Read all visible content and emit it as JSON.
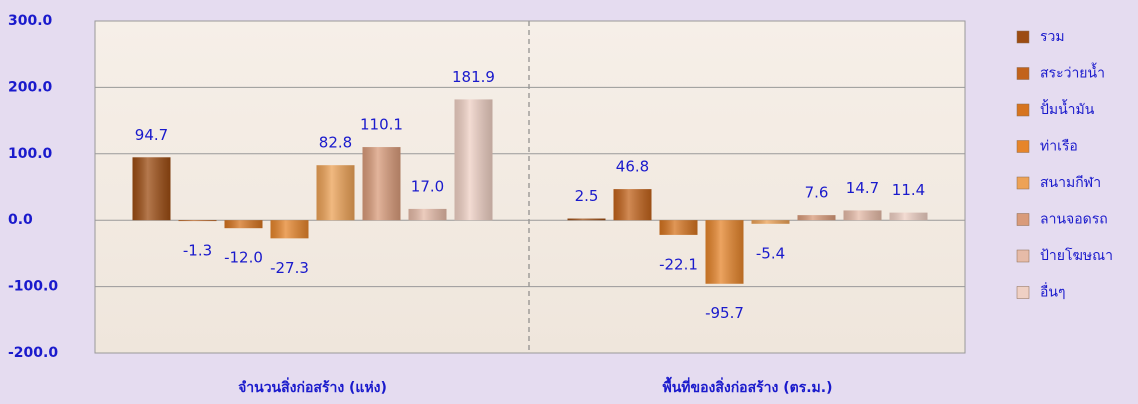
{
  "chart_data": {
    "type": "bar",
    "categories": [
      "จำนวนสิ่งก่อสร้าง (แห่ง)",
      "พื้นที่ของสิ่งก่อสร้าง (ตร.ม.)"
    ],
    "series": [
      {
        "name": "รวม",
        "color": "#9c4c12",
        "values": [
          94.7,
          2.5
        ],
        "value_labels": [
          "94.7",
          "2.5"
        ]
      },
      {
        "name": "สระว่ายน้ำ",
        "color": "#c2631b",
        "values": [
          -1.3,
          46.8
        ],
        "value_labels": [
          "-1.3",
          "46.8"
        ]
      },
      {
        "name": "ปั้มน้ำมัน",
        "color": "#d6741f",
        "values": [
          -12.0,
          -22.1
        ],
        "value_labels": [
          "-12.0",
          "-22.1"
        ]
      },
      {
        "name": "ท่าเรือ",
        "color": "#e6852b",
        "values": [
          -27.3,
          -95.7
        ],
        "value_labels": [
          "-27.3",
          "-95.7"
        ]
      },
      {
        "name": "สนามกีฬา",
        "color": "#eda256",
        "values": [
          82.8,
          -5.4
        ],
        "value_labels": [
          "82.8",
          "-5.4"
        ]
      },
      {
        "name": "ลานจอดรถ",
        "color": "#d99b7a",
        "values": [
          110.1,
          7.6
        ],
        "value_labels": [
          "110.1",
          "7.6"
        ]
      },
      {
        "name": "ป้ายโฆษณา",
        "color": "#e6bba8",
        "values": [
          17.0,
          14.7
        ],
        "value_labels": [
          "17.0",
          "14.7"
        ]
      },
      {
        "name": "อื่นๆ",
        "color": "#efd0c4",
        "values": [
          181.9,
          11.4
        ],
        "value_labels": [
          "181.9",
          "11.4"
        ]
      }
    ],
    "ylim": [
      -200,
      300
    ],
    "yticks": [
      {
        "value": -200,
        "label": "-200.0"
      },
      {
        "value": -100,
        "label": "-100.0"
      },
      {
        "value": 0,
        "label": "0.0"
      },
      {
        "value": 100,
        "label": "100.0"
      },
      {
        "value": 200,
        "label": "200.0"
      },
      {
        "value": 300,
        "label": "300.0"
      }
    ],
    "grid": true,
    "legend": "right"
  }
}
